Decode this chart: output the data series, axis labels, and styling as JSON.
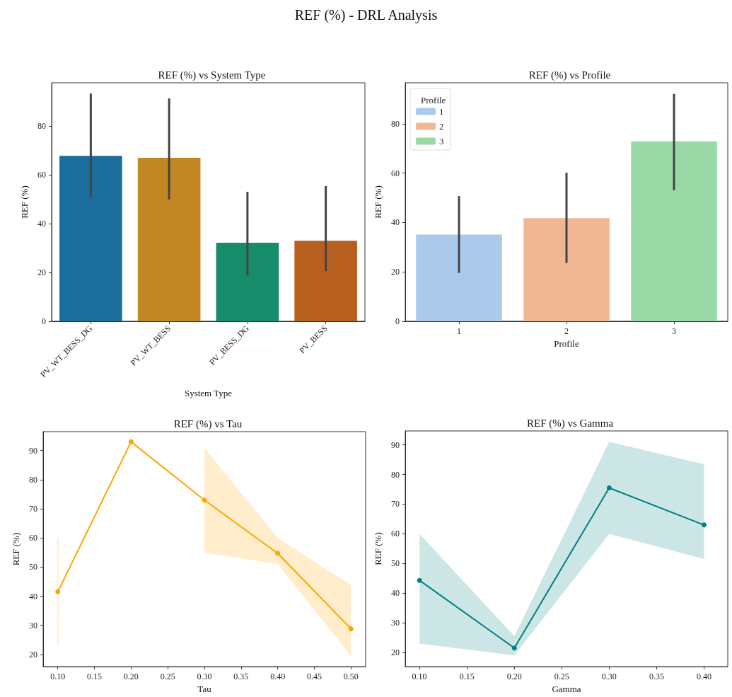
{
  "chart_data": [
    {
      "type": "bar",
      "title": "REF (%) vs System Type",
      "xlabel": "System Type",
      "ylabel": "REF (%)",
      "annotations": [
        "REF (%) - DRL Analysis"
      ],
      "categories": [
        "PV_WT_BESS_DG",
        "PV_WT_BESS",
        "PV_BESS_DG",
        "PV_BESS"
      ],
      "values": [
        67.8,
        67.0,
        32.2,
        33.0
      ],
      "colors": [
        "#1b6d9b",
        "#c28622",
        "#178c6a",
        "#b65f1f"
      ],
      "errors": [
        [
          50.7,
          93.3
        ],
        [
          49.9,
          91.3
        ],
        [
          18.8,
          53.0
        ],
        [
          20.6,
          55.4
        ]
      ],
      "ylim": [
        0,
        97.7
      ],
      "yticks": [
        0,
        20,
        40,
        60,
        80
      ],
      "grid": false,
      "legend": false
    },
    {
      "type": "bar",
      "title": "REF (%) vs Profile",
      "xlabel": "Profile",
      "ylabel": "REF (%)",
      "legend_title": "Profile",
      "categories": [
        "1",
        "2",
        "3"
      ],
      "series": [
        {
          "name": "1",
          "color": "#abc9ea",
          "values": [
            35.1,
            null,
            null
          ],
          "errors": [
            [
              19.6,
              50.7
            ],
            null,
            null
          ]
        },
        {
          "name": "2",
          "color": "#efb792",
          "values": [
            null,
            41.8,
            null
          ],
          "errors": [
            null,
            [
              23.6,
              60.2
            ],
            null
          ]
        },
        {
          "name": "3",
          "color": "#98d9a5",
          "values": [
            null,
            null,
            72.9
          ],
          "errors": [
            null,
            null,
            [
              53.1,
              92.1
            ]
          ]
        }
      ],
      "ylim": [
        0,
        96.6
      ],
      "yticks": [
        0,
        20,
        40,
        60,
        80
      ],
      "grid": false,
      "legend": "top left"
    },
    {
      "type": "line",
      "title": "REF (%) vs Tau",
      "xlabel": "Tau",
      "ylabel": "REF (%)",
      "series": [
        {
          "color": "#ffa500",
          "x": [
            0.1,
            0.2,
            0.3,
            0.4,
            0.5
          ],
          "values": [
            41.5,
            93.0,
            73.0,
            54.7,
            28.8
          ],
          "lower": [
            23,
            null,
            55,
            51,
            19.5
          ],
          "upper": [
            60,
            null,
            91,
            60,
            43.8
          ]
        }
      ],
      "xlim": [
        0.08,
        0.52
      ],
      "xticks": [
        {
          "value": 0.1,
          "label": "0.10"
        },
        {
          "value": 0.15,
          "label": "0.15"
        },
        {
          "value": 0.2,
          "label": "0.20"
        },
        {
          "value": 0.25,
          "label": "0.25"
        },
        {
          "value": 0.3,
          "label": "0.30"
        },
        {
          "value": 0.35,
          "label": "0.35"
        },
        {
          "value": 0.4,
          "label": "0.40"
        },
        {
          "value": 0.45,
          "label": "0.45"
        },
        {
          "value": 0.5,
          "label": "0.50"
        }
      ],
      "ylim": [
        15.8,
        96.5
      ],
      "yticks": [
        20,
        30,
        40,
        50,
        60,
        70,
        80,
        90
      ],
      "marker": "circle",
      "line_style": "solid",
      "grid": false,
      "legend": false
    },
    {
      "type": "line",
      "title": "REF (%) vs Gamma",
      "xlabel": "Gamma",
      "ylabel": "REF (%)",
      "series": [
        {
          "color": "#008080",
          "x": [
            0.1,
            0.2,
            0.3,
            0.4
          ],
          "values": [
            44.3,
            21.5,
            75.5,
            63.0
          ],
          "lower": [
            23,
            19,
            60,
            51.5
          ],
          "upper": [
            60,
            25.5,
            91,
            83.5
          ]
        }
      ],
      "xlim": [
        0.085,
        0.425
      ],
      "xticks": [
        {
          "value": 0.1,
          "label": "0.10"
        },
        {
          "value": 0.15,
          "label": "0.15"
        },
        {
          "value": 0.2,
          "label": "0.20"
        },
        {
          "value": 0.25,
          "label": "0.25"
        },
        {
          "value": 0.3,
          "label": "0.30"
        },
        {
          "value": 0.35,
          "label": "0.35"
        },
        {
          "value": 0.4,
          "label": "0.40"
        }
      ],
      "ylim": [
        15.2,
        94.7
      ],
      "yticks": [
        20,
        30,
        40,
        50,
        60,
        70,
        80,
        90
      ],
      "marker": "circle",
      "line_style": "solid",
      "grid": false,
      "legend": false
    }
  ]
}
